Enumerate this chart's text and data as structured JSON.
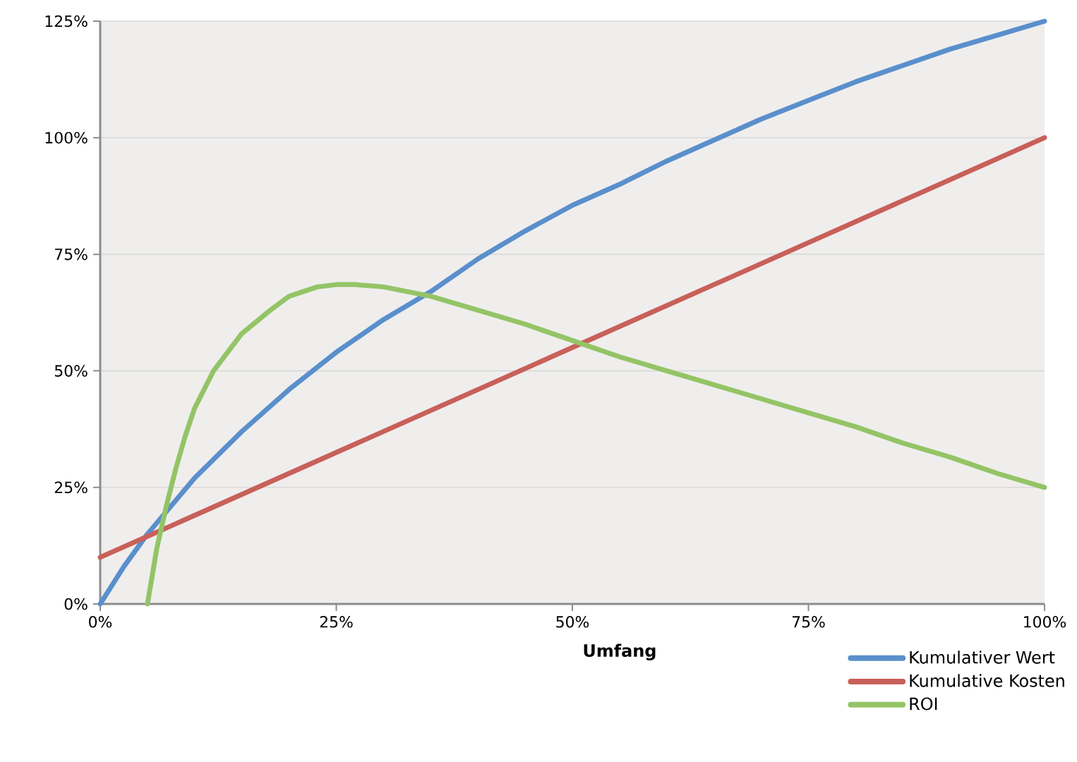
{
  "chart_data": {
    "type": "line",
    "xlabel": "Umfang",
    "xlim": [
      0,
      100
    ],
    "ylim": [
      0,
      125
    ],
    "xticks": [
      {
        "value": 0,
        "label": "0%"
      },
      {
        "value": 25,
        "label": "25%"
      },
      {
        "value": 50,
        "label": "50%"
      },
      {
        "value": 75,
        "label": "75%"
      },
      {
        "value": 100,
        "label": "100%"
      }
    ],
    "yticks": [
      {
        "value": 0,
        "label": "0%"
      },
      {
        "value": 25,
        "label": "25%"
      },
      {
        "value": 50,
        "label": "50%"
      },
      {
        "value": 75,
        "label": "75%"
      },
      {
        "value": 100,
        "label": "100%"
      },
      {
        "value": 125,
        "label": "125%"
      }
    ],
    "grid": "y",
    "legend": "bottom right",
    "marker": "none",
    "line_style": "solid",
    "series": [
      {
        "name": "Kumulativer Wert",
        "color": "#5a8fcc",
        "x": [
          0,
          2.5,
          5,
          7.5,
          10,
          15,
          20,
          25,
          30,
          35,
          40,
          45,
          50,
          55,
          60,
          65,
          70,
          75,
          80,
          85,
          90,
          95,
          100
        ],
        "values": [
          0,
          8,
          15,
          21,
          27,
          37,
          46,
          54,
          61,
          67,
          74,
          80,
          85.5,
          90,
          95,
          99.5,
          104,
          108,
          112,
          115.5,
          119,
          122,
          125
        ]
      },
      {
        "name": "Kumulative Kosten",
        "color": "#c9605a",
        "x": [
          0,
          25,
          50,
          75,
          100
        ],
        "values": [
          10,
          32.5,
          55,
          77.5,
          100
        ]
      },
      {
        "name": "ROI",
        "color": "#94c466",
        "x": [
          5,
          6,
          7,
          8,
          9,
          10,
          12,
          15,
          18,
          20,
          23,
          25,
          27,
          30,
          35,
          40,
          45,
          50,
          55,
          60,
          65,
          70,
          75,
          80,
          85,
          90,
          95,
          100
        ],
        "values": [
          0,
          12,
          21,
          29,
          36,
          42,
          50,
          58,
          63,
          66,
          68,
          68.5,
          68.5,
          68,
          66,
          63,
          60,
          56.5,
          53,
          50,
          47,
          44,
          41,
          38,
          34.5,
          31.5,
          28,
          25
        ]
      }
    ]
  }
}
